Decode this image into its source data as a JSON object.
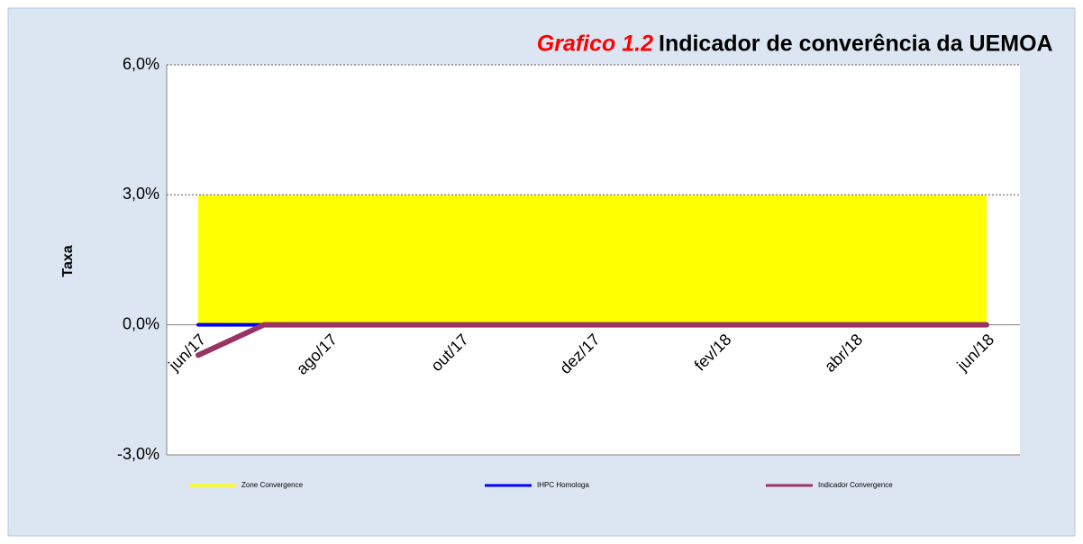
{
  "chart_data": {
    "type": "line",
    "title_prefix": "Grafico 1.2",
    "title": "Indicador de converência da UEMOA",
    "y_label": "Taxa",
    "categories": [
      "jun/17",
      null,
      "ago/17",
      null,
      "out/17",
      null,
      "dez/17",
      null,
      "fev/18",
      null,
      "abr/18",
      null,
      "jun/18"
    ],
    "series": [
      {
        "name": "Zone Convergence",
        "color": "#ffff00",
        "kind": "area",
        "values": [
          3,
          3,
          3,
          3,
          3,
          3,
          3,
          3,
          3,
          3,
          3,
          3,
          3
        ]
      },
      {
        "name": "IHPC Homologa",
        "color": "#0000ff",
        "kind": "line",
        "values": [
          0,
          0,
          0,
          0,
          0,
          0,
          0,
          0,
          0,
          0,
          0,
          0,
          0
        ]
      },
      {
        "name": "Indicador Convergence",
        "color": "#993366",
        "kind": "line",
        "values": [
          -0.7,
          0,
          0,
          0,
          0,
          0,
          0,
          0,
          0,
          0,
          0,
          0,
          0
        ]
      }
    ],
    "ylim": [
      -3,
      6
    ],
    "yticks": [
      {
        "value": -3,
        "label": "-3,0%"
      },
      {
        "value": 0,
        "label": "0,0%"
      },
      {
        "value": 3,
        "label": "3,0%"
      },
      {
        "value": 6,
        "label": "6,0%"
      }
    ],
    "grid": true
  }
}
